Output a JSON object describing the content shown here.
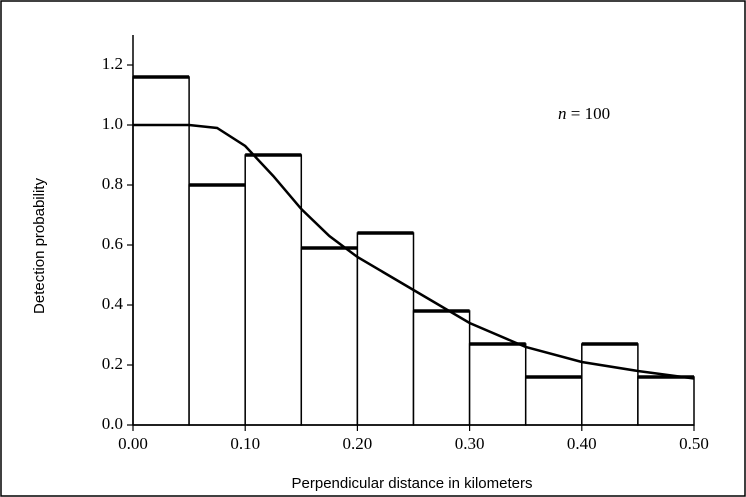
{
  "chart_data": {
    "type": "histogram",
    "x_label": "Perpendicular distance in kilometers",
    "y_label": "Detection probability",
    "annotation_var": "n",
    "annotation_value": "= 100",
    "bins": [
      0,
      0.05,
      0.1,
      0.15,
      0.2,
      0.25,
      0.3,
      0.35,
      0.4,
      0.45,
      0.5
    ],
    "values": [
      1.16,
      0.8,
      0.9,
      0.59,
      0.64,
      0.38,
      0.27,
      0.16,
      0.27,
      0.16
    ],
    "curve": {
      "x": [
        0,
        0.05,
        0.075,
        0.1,
        0.125,
        0.15,
        0.175,
        0.2,
        0.25,
        0.3,
        0.35,
        0.4,
        0.45,
        0.5
      ],
      "values": [
        1.0,
        1.0,
        0.99,
        0.93,
        0.83,
        0.72,
        0.63,
        0.56,
        0.45,
        0.34,
        0.26,
        0.21,
        0.18,
        0.155
      ]
    },
    "xlim": [
      0,
      0.5
    ],
    "ylim": [
      0,
      1.3
    ],
    "xticks": [
      {
        "value": 0,
        "label": "0.00"
      },
      {
        "value": 0.1,
        "label": "0.10"
      },
      {
        "value": 0.2,
        "label": "0.20"
      },
      {
        "value": 0.3,
        "label": "0.30"
      },
      {
        "value": 0.4,
        "label": "0.40"
      },
      {
        "value": 0.5,
        "label": "0.50"
      }
    ],
    "yticks": [
      {
        "value": 0,
        "label": "0.0"
      },
      {
        "value": 0.2,
        "label": "0.2"
      },
      {
        "value": 0.4,
        "label": "0.4"
      },
      {
        "value": 0.6,
        "label": "0.6"
      },
      {
        "value": 0.8,
        "label": "0.8"
      },
      {
        "value": 1.0,
        "label": "1.0"
      },
      {
        "value": 1.2,
        "label": "1.2"
      }
    ]
  }
}
